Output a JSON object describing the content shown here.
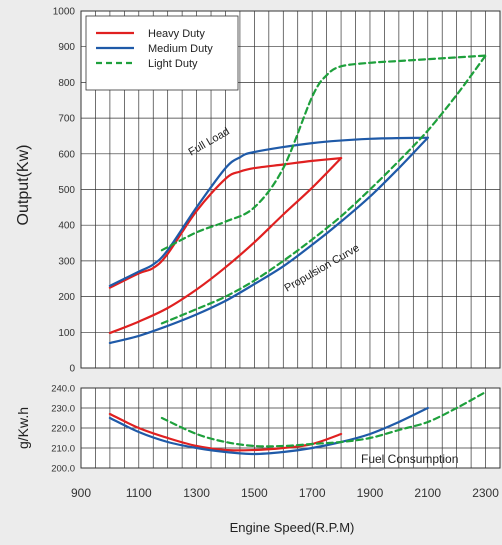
{
  "chart_data": [
    {
      "type": "line",
      "title": "",
      "xlabel": "Engine Speed(R.P.M)",
      "ylabel": "Output(Kw)",
      "xlim": [
        900,
        2350
      ],
      "ylim": [
        0,
        1000
      ],
      "yticks": [
        "0",
        "100",
        "200",
        "300",
        "400",
        "500",
        "600",
        "700",
        "800",
        "900",
        "1000"
      ],
      "grid": true,
      "legend": "top-left",
      "annotations": [
        "Full Load",
        "Propulsion Curve"
      ],
      "series": [
        {
          "name": "Heavy Duty",
          "color": "#e02020",
          "dash": false,
          "curves": [
            {
              "x": [
                1000,
                1100,
                1150,
                1200,
                1300,
                1400,
                1450,
                1500,
                1600,
                1700,
                1800
              ],
              "y": [
                225,
                265,
                280,
                320,
                440,
                530,
                550,
                560,
                570,
                580,
                588
              ]
            },
            {
              "x": [
                1000,
                1100,
                1200,
                1300,
                1400,
                1500,
                1600,
                1700,
                1800
              ],
              "y": [
                98,
                130,
                168,
                220,
                282,
                352,
                430,
                505,
                588
              ]
            }
          ]
        },
        {
          "name": "Medium Duty",
          "color": "#1f5aa8",
          "dash": false,
          "curves": [
            {
              "x": [
                1000,
                1100,
                1150,
                1200,
                1300,
                1400,
                1450,
                1500,
                1700,
                1900,
                2100
              ],
              "y": [
                230,
                270,
                290,
                330,
                450,
                560,
                590,
                605,
                630,
                642,
                645
              ]
            },
            {
              "x": [
                1000,
                1100,
                1200,
                1300,
                1400,
                1500,
                1600,
                1700,
                1800,
                1900,
                2000,
                2100
              ],
              "y": [
                70,
                90,
                118,
                150,
                188,
                235,
                285,
                345,
                410,
                480,
                560,
                645
              ]
            }
          ]
        },
        {
          "name": "Light Duty",
          "color": "#1ea03c",
          "dash": true,
          "curves": [
            {
              "x": [
                1180,
                1300,
                1400,
                1500,
                1600,
                1700,
                1750,
                1800,
                1900,
                2000,
                2100,
                2200,
                2300
              ],
              "y": [
                330,
                380,
                410,
                450,
                560,
                760,
                820,
                845,
                855,
                860,
                865,
                870,
                875
              ]
            },
            {
              "x": [
                1180,
                1300,
                1400,
                1500,
                1600,
                1700,
                1800,
                1900,
                2000,
                2100,
                2200,
                2300
              ],
              "y": [
                125,
                165,
                200,
                245,
                300,
                360,
                425,
                500,
                580,
                665,
                765,
                875
              ]
            }
          ]
        }
      ]
    },
    {
      "type": "line",
      "title": "",
      "xlabel": "Engine Speed(R.P.M)",
      "ylabel": "g/Kw.h",
      "xlim": [
        900,
        2350
      ],
      "ylim": [
        200,
        240
      ],
      "yticks": [
        "200.0",
        "210.0",
        "220.0",
        "230.0",
        "240.0"
      ],
      "xticks": [
        "900",
        "1100",
        "1300",
        "1500",
        "1700",
        "1900",
        "2100",
        "2300"
      ],
      "grid": true,
      "annotations": [
        "Fuel Consumption"
      ],
      "series": [
        {
          "name": "Heavy Duty",
          "color": "#e02020",
          "dash": false,
          "curves": [
            {
              "x": [
                1000,
                1100,
                1200,
                1300,
                1400,
                1500,
                1600,
                1700,
                1800
              ],
              "y": [
                227,
                220,
                215,
                211,
                209,
                209,
                210,
                212,
                217
              ]
            }
          ]
        },
        {
          "name": "Medium Duty",
          "color": "#1f5aa8",
          "dash": false,
          "curves": [
            {
              "x": [
                1000,
                1100,
                1200,
                1300,
                1400,
                1500,
                1600,
                1700,
                1800,
                1900,
                2000,
                2100
              ],
              "y": [
                225,
                218,
                213,
                210,
                208,
                207,
                208,
                210,
                213,
                217,
                223,
                230
              ]
            }
          ]
        },
        {
          "name": "Light Duty",
          "color": "#1ea03c",
          "dash": true,
          "curves": [
            {
              "x": [
                1180,
                1300,
                1400,
                1500,
                1600,
                1700,
                1800,
                1900,
                2000,
                2100,
                2200,
                2300
              ],
              "y": [
                225,
                217,
                213,
                211,
                211,
                212,
                213,
                215,
                219,
                223,
                230,
                238
              ]
            }
          ]
        }
      ]
    }
  ]
}
